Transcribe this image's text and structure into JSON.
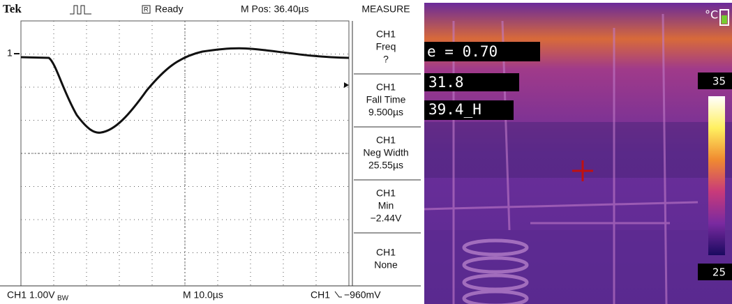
{
  "oscilloscope": {
    "header": {
      "brand": "Tek",
      "status": "Ready",
      "position": "M Pos: 36.40µs",
      "menu": "MEASURE"
    },
    "channel_marker": "1",
    "measurements": [
      [
        "CH1",
        "Freq",
        "?"
      ],
      [
        "CH1",
        "Fall Time",
        "9.500µs"
      ],
      [
        "CH1",
        "Neg Width",
        "25.55µs"
      ],
      [
        "CH1",
        "Min",
        "−2.44V"
      ],
      [
        "CH1",
        "None"
      ]
    ],
    "footer": {
      "channel": "CH1",
      "scale": "1.00V",
      "bw": "BW",
      "timebase": "M 10.0µs",
      "trigger_channel": "CH1",
      "trigger_level": "−960mV"
    }
  },
  "thermal": {
    "emissivity": "e = 0.70",
    "spot": "31.8",
    "max": "39.4_H",
    "unit": "°C",
    "scale_max": "35",
    "scale_min": "25"
  }
}
